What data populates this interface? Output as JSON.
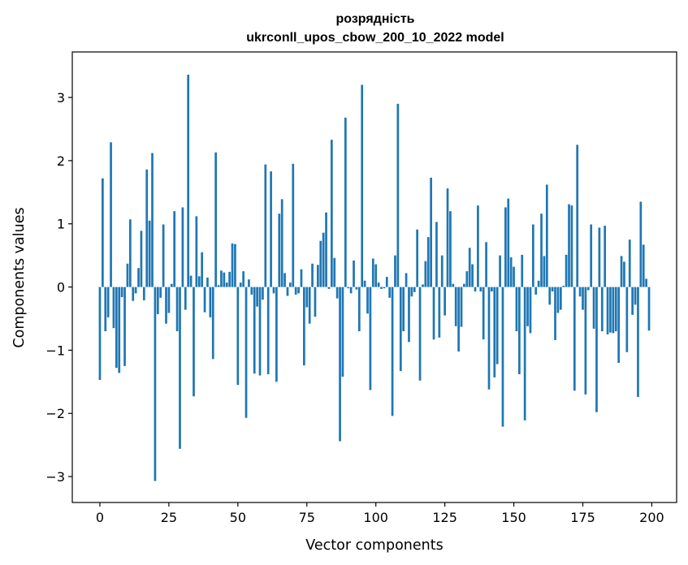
{
  "chart_data": {
    "type": "bar",
    "title_line1": "розрядність",
    "title_line2": "ukrconll_upos_cbow_200_10_2022 model",
    "xlabel": "Vector components",
    "ylabel": "Components values",
    "xlim": [
      -10,
      209
    ],
    "ylim": [
      -3.41,
      3.72
    ],
    "xticks": [
      0,
      25,
      50,
      75,
      100,
      125,
      150,
      175,
      200
    ],
    "xtick_labels": [
      "0",
      "25",
      "50",
      "75",
      "100",
      "125",
      "150",
      "175",
      "200"
    ],
    "yticks": [
      -3,
      -2,
      -1,
      0,
      1,
      2,
      3
    ],
    "ytick_labels": [
      "−3",
      "−2",
      "−1",
      "0",
      "1",
      "2",
      "3"
    ],
    "bar_color": "#1f77b4",
    "bar_width": 0.8,
    "values": [
      -1.47,
      1.72,
      -0.7,
      -0.48,
      2.29,
      -0.65,
      -1.28,
      -1.36,
      -0.16,
      -1.25,
      0.37,
      1.07,
      -0.22,
      -0.1,
      0.3,
      0.89,
      -0.21,
      1.86,
      1.05,
      2.12,
      -3.07,
      -0.43,
      -0.17,
      0.99,
      -0.58,
      -0.41,
      0.05,
      1.2,
      -0.7,
      -2.56,
      1.26,
      -0.36,
      3.36,
      0.18,
      -1.73,
      1.12,
      0.17,
      0.55,
      -0.4,
      0.15,
      -0.48,
      -1.14,
      2.13,
      0.03,
      0.26,
      0.23,
      0.07,
      0.24,
      0.69,
      0.68,
      -1.55,
      0.07,
      0.25,
      -2.07,
      0.12,
      -0.12,
      -1.37,
      -0.31,
      -1.4,
      -0.2,
      1.94,
      -1.38,
      1.83,
      -0.1,
      -1.5,
      1.16,
      1.39,
      0.22,
      -0.14,
      0.07,
      1.95,
      -0.12,
      -0.1,
      0.28,
      -1.24,
      -0.32,
      -0.58,
      0.37,
      -0.47,
      0.35,
      0.73,
      0.86,
      1.18,
      -0.03,
      2.33,
      0.46,
      -0.18,
      -2.44,
      -1.42,
      2.68,
      -0.02,
      -0.1,
      0.42,
      -0.04,
      -0.7,
      3.2,
      0.1,
      -0.42,
      -1.63,
      0.45,
      0.36,
      0.07,
      -0.03,
      -0.02,
      0.16,
      -0.17,
      -2.04,
      0.5,
      2.9,
      -1.33,
      -0.7,
      0.22,
      -0.87,
      -0.15,
      -0.08,
      0.91,
      -1.48,
      0.04,
      0.41,
      0.79,
      1.73,
      -0.83,
      1.03,
      -0.8,
      0.5,
      -0.45,
      1.56,
      1.2,
      0.05,
      -0.62,
      -1.02,
      -0.63,
      0.05,
      0.25,
      0.62,
      0.36,
      -0.07,
      1.29,
      -0.07,
      -0.83,
      0.71,
      -1.62,
      -0.07,
      -1.43,
      -1.22,
      0.5,
      -2.21,
      1.26,
      1.4,
      0.47,
      0.32,
      -0.7,
      -1.38,
      0.51,
      -2.11,
      -0.62,
      -0.73,
      0.99,
      -0.12,
      0.1,
      1.16,
      0.49,
      1.62,
      -0.28,
      -0.07,
      -0.84,
      -0.41,
      -0.36,
      0.02,
      0.51,
      1.31,
      1.29,
      -1.64,
      2.25,
      -0.15,
      -0.36,
      -1.7,
      -0.05,
      0.99,
      -0.66,
      -1.98,
      0.94,
      -0.7,
      0.97,
      -0.75,
      -0.72,
      -0.73,
      -0.7,
      -1.2,
      0.49,
      0.4,
      -1.03,
      0.75,
      -0.44,
      -0.28,
      -1.74,
      1.35,
      0.67,
      0.13,
      -0.69
    ]
  }
}
